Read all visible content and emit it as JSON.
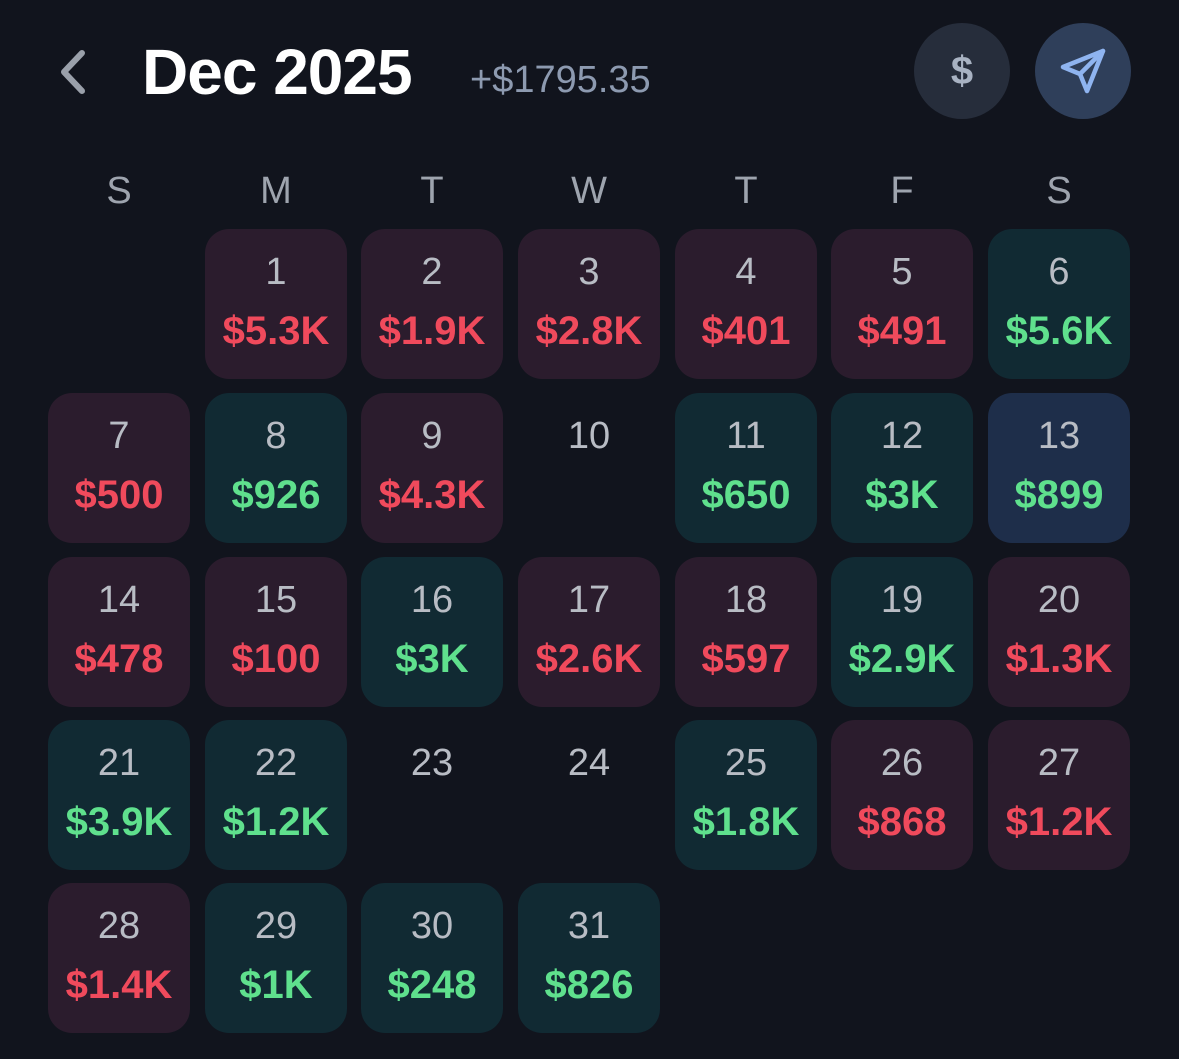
{
  "header": {
    "title": "Dec 2025",
    "total": "+$1795.35",
    "back_icon": "chevron-left-icon",
    "currency_button_label": "$",
    "send_icon": "paper-plane-icon"
  },
  "colors": {
    "background": "#11141d",
    "negative_cell": "#2b1c2d",
    "positive_cell": "#112a33",
    "selected_cell": "#1e2e4a",
    "negative_text": "#f04a5c",
    "positive_text": "#5fe08d"
  },
  "weekdays": [
    "S",
    "M",
    "T",
    "W",
    "T",
    "F",
    "S"
  ],
  "first_weekday_index": 1,
  "days": [
    {
      "day": "1",
      "amount": "$5.3K",
      "type": "neg"
    },
    {
      "day": "2",
      "amount": "$1.9K",
      "type": "neg"
    },
    {
      "day": "3",
      "amount": "$2.8K",
      "type": "neg"
    },
    {
      "day": "4",
      "amount": "$401",
      "type": "neg"
    },
    {
      "day": "5",
      "amount": "$491",
      "type": "neg"
    },
    {
      "day": "6",
      "amount": "$5.6K",
      "type": "pos"
    },
    {
      "day": "7",
      "amount": "$500",
      "type": "neg"
    },
    {
      "day": "8",
      "amount": "$926",
      "type": "pos"
    },
    {
      "day": "9",
      "amount": "$4.3K",
      "type": "neg"
    },
    {
      "day": "10",
      "amount": "",
      "type": "empty"
    },
    {
      "day": "11",
      "amount": "$650",
      "type": "pos"
    },
    {
      "day": "12",
      "amount": "$3K",
      "type": "pos"
    },
    {
      "day": "13",
      "amount": "$899",
      "type": "sel"
    },
    {
      "day": "14",
      "amount": "$478",
      "type": "neg"
    },
    {
      "day": "15",
      "amount": "$100",
      "type": "neg"
    },
    {
      "day": "16",
      "amount": "$3K",
      "type": "pos"
    },
    {
      "day": "17",
      "amount": "$2.6K",
      "type": "neg"
    },
    {
      "day": "18",
      "amount": "$597",
      "type": "neg"
    },
    {
      "day": "19",
      "amount": "$2.9K",
      "type": "pos"
    },
    {
      "day": "20",
      "amount": "$1.3K",
      "type": "neg"
    },
    {
      "day": "21",
      "amount": "$3.9K",
      "type": "pos"
    },
    {
      "day": "22",
      "amount": "$1.2K",
      "type": "pos"
    },
    {
      "day": "23",
      "amount": "",
      "type": "empty"
    },
    {
      "day": "24",
      "amount": "",
      "type": "empty"
    },
    {
      "day": "25",
      "amount": "$1.8K",
      "type": "pos"
    },
    {
      "day": "26",
      "amount": "$868",
      "type": "neg"
    },
    {
      "day": "27",
      "amount": "$1.2K",
      "type": "neg"
    },
    {
      "day": "28",
      "amount": "$1.4K",
      "type": "neg"
    },
    {
      "day": "29",
      "amount": "$1K",
      "type": "pos"
    },
    {
      "day": "30",
      "amount": "$248",
      "type": "pos"
    },
    {
      "day": "31",
      "amount": "$826",
      "type": "pos"
    }
  ]
}
